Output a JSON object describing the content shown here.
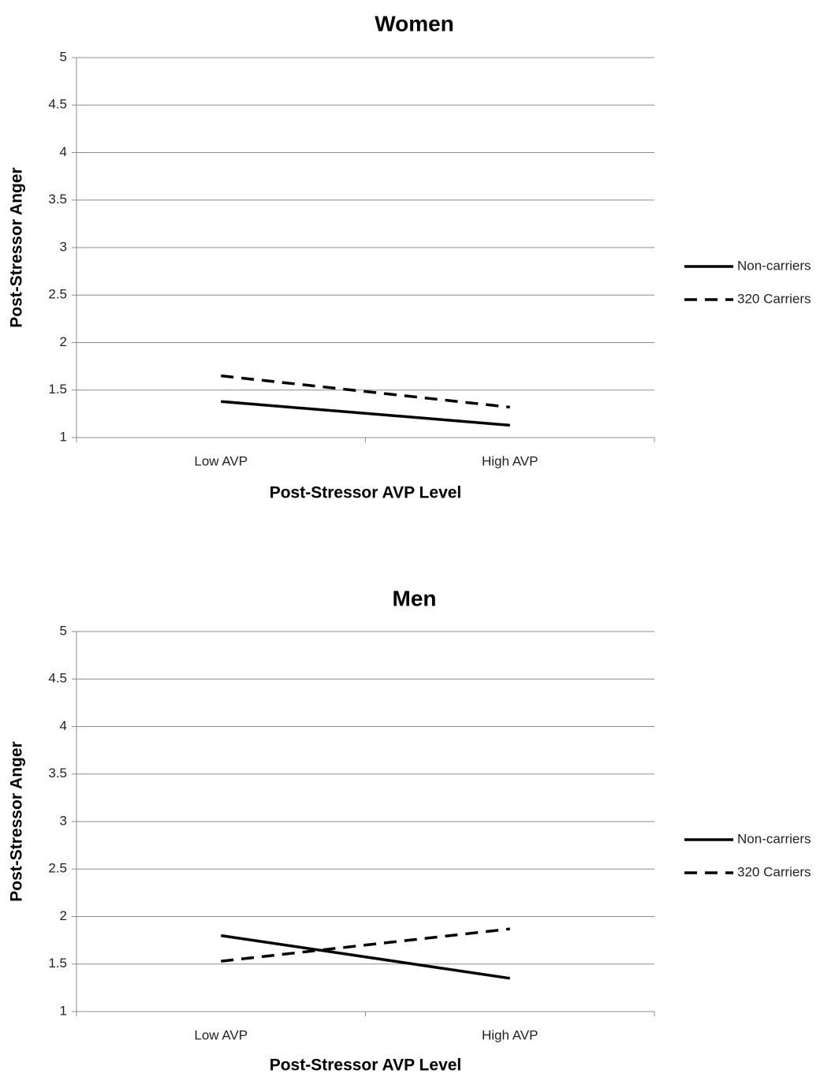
{
  "chart_data": [
    {
      "type": "line",
      "title": "Women",
      "xlabel": "Post-Stressor AVP Level",
      "ylabel": "Post-Stressor Anger",
      "categories": [
        "Low AVP",
        "High AVP"
      ],
      "ylim": [
        1,
        5
      ],
      "yticks": [
        "1",
        "1.5",
        "2",
        "2.5",
        "3",
        "3.5",
        "4",
        "4.5",
        "5"
      ],
      "grid": true,
      "legend_position": "right",
      "series": [
        {
          "name": "Non-carriers",
          "style": "solid",
          "color": "#000000",
          "values": [
            1.38,
            1.13
          ]
        },
        {
          "name": "320 Carriers",
          "style": "dashed",
          "color": "#000000",
          "values": [
            1.65,
            1.32
          ]
        }
      ]
    },
    {
      "type": "line",
      "title": "Men",
      "xlabel": "Post-Stressor AVP Level",
      "ylabel": "Post-Stressor Anger",
      "categories": [
        "Low AVP",
        "High AVP"
      ],
      "ylim": [
        1,
        5
      ],
      "yticks": [
        "1",
        "1.5",
        "2",
        "2.5",
        "3",
        "3.5",
        "4",
        "4.5",
        "5"
      ],
      "grid": true,
      "legend_position": "right",
      "series": [
        {
          "name": "Non-carriers",
          "style": "solid",
          "color": "#000000",
          "values": [
            1.8,
            1.35
          ]
        },
        {
          "name": "320 Carriers",
          "style": "dashed",
          "color": "#000000",
          "values": [
            1.53,
            1.87
          ]
        }
      ]
    }
  ]
}
